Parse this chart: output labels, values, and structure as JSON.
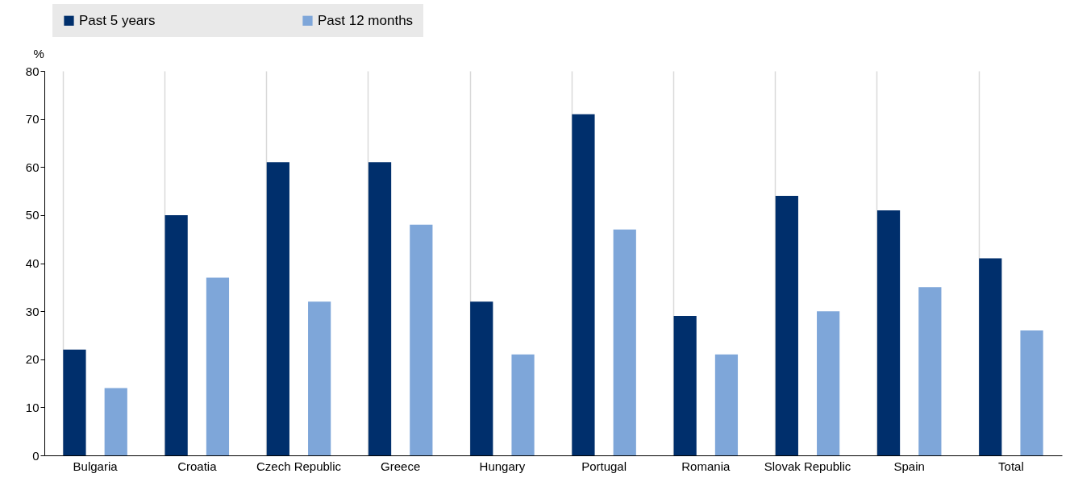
{
  "chart_data": {
    "type": "bar",
    "ylabel": "%",
    "categories": [
      "Bulgaria",
      "Croatia",
      "Czech Republic",
      "Greece",
      "Hungary",
      "Portugal",
      "Romania",
      "Slovak Republic",
      "Spain",
      "Total"
    ],
    "series": [
      {
        "name": "Past 5 years",
        "color": "#002f6c",
        "values": [
          22,
          50,
          61,
          61,
          32,
          71,
          29,
          54,
          51,
          41
        ]
      },
      {
        "name": "Past 12 months",
        "color": "#7ea6d9",
        "values": [
          14,
          37,
          32,
          48,
          21,
          47,
          21,
          30,
          35,
          26
        ]
      }
    ],
    "ylim": [
      0,
      80
    ],
    "yticks": [
      0,
      10,
      20,
      30,
      40,
      50,
      60,
      70,
      80
    ],
    "grid": "x",
    "legend": "top"
  }
}
